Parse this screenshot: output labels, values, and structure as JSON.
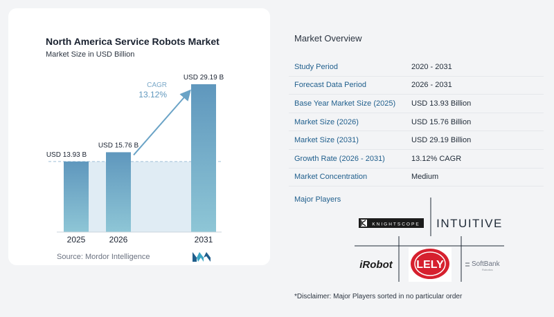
{
  "chart_data": {
    "type": "bar",
    "title": "North America Service Robots Market",
    "subtitle": "Market Size in USD Billion",
    "categories": [
      "2025",
      "2026",
      "2031"
    ],
    "values": [
      13.93,
      15.76,
      29.19
    ],
    "value_labels": [
      "USD 13.93 B",
      "USD 15.76 B",
      "USD 29.19 B"
    ],
    "ylim": [
      0,
      30
    ],
    "cagr_label": "CAGR",
    "cagr_value": "13.12%",
    "colors": {
      "bar_top": "#5f97bd",
      "bar_bottom": "#8ec6d6",
      "band": "#e0ecf4",
      "arrow": "#6aa3c6",
      "dash": "#9fbfd6"
    }
  },
  "source": {
    "text": "Source:  Mordor Intelligence",
    "logo_icon": "mordor-intelligence-logo-icon"
  },
  "overview": {
    "title": "Market Overview",
    "rows": [
      {
        "label": "Study Period",
        "value": "2020 - 2031"
      },
      {
        "label": "Forecast Data Period",
        "value": "2026 - 2031"
      },
      {
        "label": "Base Year Market Size (2025)",
        "value": "USD 13.93 Billion"
      },
      {
        "label": "Market Size (2026)",
        "value": "USD 15.76 Billion"
      },
      {
        "label": "Market Size (2031)",
        "value": "USD 29.19 Billion"
      },
      {
        "label": "Growth Rate (2026 - 2031)",
        "value": "13.12% CAGR"
      },
      {
        "label": "Market Concentration",
        "value": "Medium"
      }
    ]
  },
  "players": {
    "title": "Major Players",
    "logos": {
      "knightscope": "KNIGHTSCOPE",
      "intuitive": "INTUITIVE",
      "irobot": "iRobot",
      "lely": "LELY",
      "softbank": "SoftBank",
      "softbank_sub": "Robotics"
    }
  },
  "disclaimer": "*Disclaimer: Major Players sorted in no particular order"
}
